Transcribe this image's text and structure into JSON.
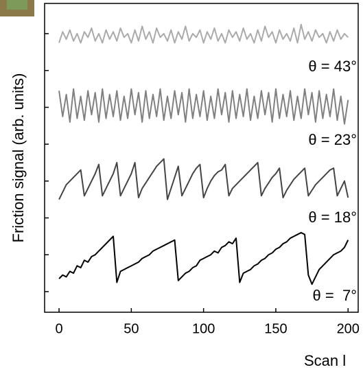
{
  "chart_data": {
    "type": "line",
    "y_label": "Friction signal (arb. units)",
    "x_label": "Scan l",
    "xlim": [
      -10,
      207
    ],
    "ylim": [
      -0.56,
      7.82
    ],
    "xticks": [
      0,
      50,
      100,
      150,
      200
    ],
    "yticks": [
      0,
      1,
      2,
      3,
      4,
      5,
      6,
      7
    ],
    "x": [
      0,
      2.5,
      5,
      7.5,
      10,
      12.5,
      15,
      17.5,
      20,
      22.5,
      25,
      27.5,
      30,
      32.5,
      35,
      37.5,
      40,
      42.5,
      45,
      47.5,
      50,
      52.5,
      55,
      57.5,
      60,
      62.5,
      65,
      67.5,
      70,
      72.5,
      75,
      77.5,
      80,
      82.5,
      85,
      87.5,
      90,
      92.5,
      95,
      97.5,
      100,
      102.5,
      105,
      107.5,
      110,
      112.5,
      115,
      117.5,
      120,
      122.5,
      125,
      127.5,
      130,
      132.5,
      135,
      137.5,
      140,
      142.5,
      145,
      147.5,
      150,
      152.5,
      155,
      157.5,
      160,
      162.5,
      165,
      167.5,
      170,
      172.5,
      175,
      177.5,
      180,
      182.5,
      185,
      187.5,
      190,
      192.5,
      195,
      197.5,
      200
    ],
    "series": [
      {
        "name": "θ = 43°",
        "color": "#aaaaaa",
        "values": [
          6.75,
          7.05,
          6.85,
          7.1,
          6.8,
          7.0,
          6.75,
          7.05,
          6.9,
          7.15,
          6.8,
          7.0,
          6.75,
          7.1,
          6.85,
          7.05,
          6.8,
          7.15,
          6.9,
          7.0,
          6.75,
          7.1,
          6.8,
          7.2,
          6.85,
          7.05,
          6.75,
          7.15,
          6.9,
          7.0,
          6.8,
          7.1,
          6.75,
          7.05,
          6.85,
          7.2,
          6.8,
          7.0,
          6.9,
          7.1,
          6.75,
          7.05,
          6.85,
          7.15,
          6.8,
          7.0,
          6.75,
          7.1,
          6.9,
          7.05,
          6.8,
          7.15,
          6.85,
          7.0,
          6.75,
          7.1,
          6.8,
          7.2,
          6.9,
          7.05,
          6.75,
          7.1,
          6.85,
          7.0,
          6.8,
          7.15,
          6.75,
          7.25,
          6.85,
          7.05,
          6.8,
          7.1,
          6.9,
          7.0,
          6.75,
          7.05,
          6.8,
          7.1,
          6.85,
          7.0,
          6.9
        ]
      },
      {
        "name": "θ = 23°",
        "color": "#808080",
        "values": [
          5.45,
          4.75,
          5.35,
          4.6,
          5.5,
          4.7,
          5.3,
          4.65,
          5.45,
          4.8,
          5.4,
          4.6,
          5.5,
          4.7,
          5.35,
          4.75,
          5.45,
          4.65,
          5.3,
          4.7,
          5.5,
          4.8,
          5.4,
          4.6,
          5.45,
          4.7,
          5.35,
          4.75,
          5.5,
          4.65,
          5.3,
          4.7,
          5.45,
          4.8,
          5.4,
          4.6,
          5.5,
          4.7,
          5.35,
          4.75,
          5.45,
          4.65,
          5.3,
          4.7,
          5.5,
          4.8,
          5.4,
          4.6,
          5.45,
          4.7,
          5.35,
          4.75,
          5.5,
          4.65,
          5.3,
          4.7,
          5.45,
          4.8,
          5.4,
          4.6,
          5.5,
          4.7,
          5.35,
          4.75,
          5.45,
          4.65,
          5.3,
          4.7,
          5.5,
          4.8,
          5.4,
          4.6,
          5.45,
          4.7,
          5.35,
          4.75,
          5.5,
          4.65,
          5.3,
          4.55,
          5.2
        ]
      },
      {
        "name": "θ = 18°",
        "color": "#444444",
        "values": [
          2.5,
          2.7,
          2.9,
          3.0,
          3.1,
          3.2,
          3.3,
          2.6,
          2.8,
          3.0,
          3.2,
          3.45,
          2.6,
          2.8,
          3.0,
          3.2,
          3.5,
          2.6,
          2.8,
          3.0,
          3.2,
          3.5,
          2.55,
          2.8,
          2.95,
          3.1,
          3.25,
          3.4,
          3.5,
          3.6,
          2.5,
          2.8,
          3.1,
          3.4,
          2.6,
          2.8,
          3.0,
          3.2,
          3.35,
          3.45,
          2.55,
          2.8,
          3.0,
          3.15,
          3.25,
          3.3,
          3.45,
          2.6,
          2.8,
          2.9,
          3.0,
          3.1,
          3.2,
          3.3,
          3.4,
          3.5,
          2.6,
          2.8,
          2.95,
          3.1,
          3.2,
          3.35,
          2.55,
          2.75,
          2.9,
          3.05,
          3.15,
          3.25,
          3.35,
          2.6,
          2.75,
          2.9,
          3.0,
          3.1,
          3.2,
          3.3,
          3.35,
          2.6,
          2.8,
          3.0,
          2.55
        ]
      },
      {
        "name": "θ =  7°",
        "color": "#000000",
        "values": [
          0.35,
          0.45,
          0.4,
          0.55,
          0.5,
          0.7,
          0.65,
          0.85,
          0.8,
          0.95,
          1.0,
          1.1,
          1.2,
          1.3,
          1.4,
          1.5,
          0.25,
          0.55,
          0.6,
          0.65,
          0.7,
          0.75,
          0.8,
          0.9,
          0.95,
          1.0,
          1.1,
          1.15,
          1.2,
          1.25,
          1.3,
          1.35,
          1.4,
          0.3,
          0.4,
          0.5,
          0.55,
          0.65,
          0.7,
          0.85,
          0.9,
          0.95,
          1.0,
          1.1,
          1.05,
          1.2,
          1.25,
          1.35,
          1.3,
          1.45,
          0.25,
          0.5,
          0.55,
          0.6,
          0.7,
          0.75,
          0.85,
          0.9,
          1.0,
          1.05,
          1.15,
          1.2,
          1.3,
          1.35,
          1.45,
          1.5,
          1.55,
          1.6,
          1.55,
          0.45,
          0.2,
          0.4,
          0.6,
          0.7,
          0.8,
          0.9,
          1.0,
          1.05,
          1.1,
          1.2,
          1.4
        ]
      }
    ]
  }
}
